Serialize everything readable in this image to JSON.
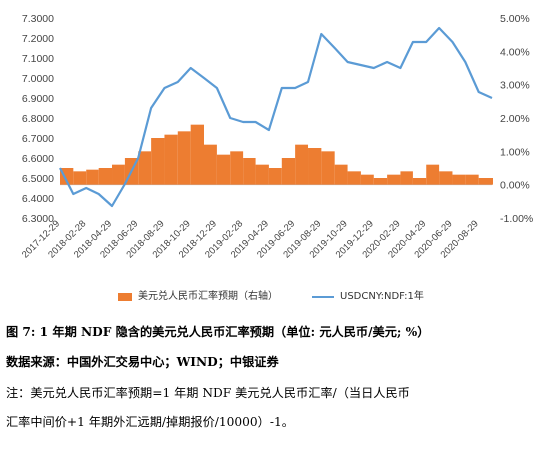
{
  "chart_data": {
    "type": "bar+line",
    "y_left": {
      "ticks": [
        "6.3000",
        "6.4000",
        "6.5000",
        "6.6000",
        "6.7000",
        "6.8000",
        "6.9000",
        "7.0000",
        "7.1000",
        "7.2000",
        "7.3000"
      ],
      "range": [
        6.3,
        7.3
      ]
    },
    "y_right": {
      "ticks": [
        "-1.00%",
        "0.00%",
        "1.00%",
        "2.00%",
        "3.00%",
        "4.00%",
        "5.00%"
      ],
      "range": [
        -1.0,
        5.0
      ]
    },
    "x_ticks": [
      "2017-12-29",
      "2018-02-28",
      "2018-04-29",
      "2018-06-29",
      "2018-08-29",
      "2018-10-29",
      "2018-12-29",
      "2019-02-28",
      "2019-04-29",
      "2019-06-29",
      "2019-08-29",
      "2019-10-29",
      "2019-12-29",
      "2020-02-29",
      "2020-04-29",
      "2020-06-29",
      "2020-08-29"
    ],
    "series": [
      {
        "name": "美元兑人民币汇率预期（右轴）",
        "type": "bar",
        "axis": "right",
        "color": "#ED7D31",
        "x": [
          "2017-12-29",
          "2018-01-29",
          "2018-02-28",
          "2018-03-29",
          "2018-04-29",
          "2018-05-29",
          "2018-06-29",
          "2018-07-29",
          "2018-08-29",
          "2018-09-29",
          "2018-10-29",
          "2018-11-29",
          "2018-12-29",
          "2019-01-29",
          "2019-02-28",
          "2019-03-29",
          "2019-04-29",
          "2019-05-29",
          "2019-06-29",
          "2019-07-29",
          "2019-08-29",
          "2019-09-29",
          "2019-10-29",
          "2019-11-29",
          "2019-12-29",
          "2020-01-29",
          "2020-02-29",
          "2020-03-29",
          "2020-04-29",
          "2020-05-29",
          "2020-06-29",
          "2020-07-29",
          "2020-08-29",
          "2020-09-29"
        ],
        "values": [
          0.5,
          0.4,
          0.45,
          0.5,
          0.6,
          0.8,
          1.0,
          1.4,
          1.5,
          1.6,
          1.8,
          1.2,
          0.9,
          1.0,
          0.8,
          0.6,
          0.5,
          0.8,
          1.2,
          1.1,
          1.0,
          0.6,
          0.4,
          0.3,
          0.2,
          0.3,
          0.4,
          0.2,
          0.6,
          0.4,
          0.3,
          0.3,
          0.2,
          0.2
        ]
      },
      {
        "name": "USDCNY:NDF:1年",
        "type": "line",
        "axis": "left",
        "color": "#5B9BD5",
        "x": [
          "2017-12-29",
          "2018-01-29",
          "2018-02-28",
          "2018-03-29",
          "2018-04-29",
          "2018-05-29",
          "2018-06-29",
          "2018-07-29",
          "2018-08-29",
          "2018-09-29",
          "2018-10-29",
          "2018-11-29",
          "2018-12-29",
          "2019-01-29",
          "2019-02-28",
          "2019-03-29",
          "2019-04-29",
          "2019-05-29",
          "2019-06-29",
          "2019-07-29",
          "2019-08-29",
          "2019-09-29",
          "2019-10-29",
          "2019-12-29",
          "2020-01-29",
          "2020-02-29",
          "2020-03-29",
          "2020-04-29",
          "2020-05-29",
          "2020-06-29",
          "2020-07-29",
          "2020-08-29",
          "2020-09-29"
        ],
        "values": [
          6.55,
          6.42,
          6.45,
          6.42,
          6.36,
          6.47,
          6.6,
          6.85,
          6.95,
          6.98,
          7.05,
          7.0,
          6.95,
          6.8,
          6.78,
          6.78,
          6.74,
          6.95,
          6.95,
          6.98,
          7.22,
          7.15,
          7.08,
          7.05,
          7.08,
          7.05,
          7.18,
          7.18,
          7.25,
          7.18,
          7.08,
          6.93,
          6.9
        ]
      }
    ]
  },
  "caption": {
    "figure_label": "图 7: 1 年期 NDF 隐含的美元兑人民币汇率预期（单位: 元人民币/美元; %）",
    "source": "数据来源：中国外汇交易中心；WIND；中银证券",
    "note_line1": "注：美元兑人民币汇率预期=1 年期 NDF 美元兑人民币汇率/（当日人民币",
    "note_line2": "汇率中间价+1 年期外汇远期/掉期报价/10000）-1。"
  }
}
